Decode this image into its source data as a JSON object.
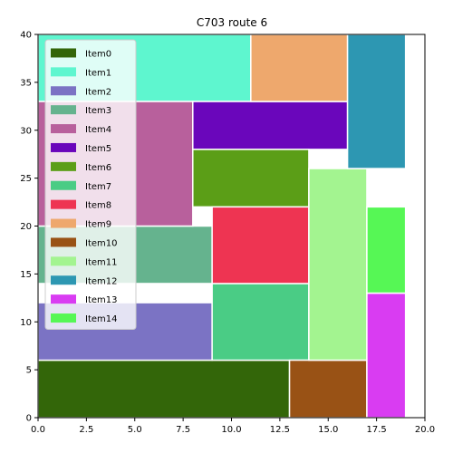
{
  "chart_data": {
    "type": "bar",
    "subtype": "rectangle-packing",
    "title": "C703 route 6",
    "xlabel": "",
    "ylabel": "",
    "xlim": [
      0,
      20
    ],
    "ylim": [
      0,
      40
    ],
    "xticks": [
      "0.0",
      "2.5",
      "5.0",
      "7.5",
      "10.0",
      "12.5",
      "15.0",
      "17.5",
      "20.0"
    ],
    "yticks": [
      "0",
      "5",
      "10",
      "15",
      "20",
      "25",
      "30",
      "35",
      "40"
    ],
    "grid": false,
    "legend_position": "upper-left",
    "series": [
      {
        "name": "Item0",
        "color": "#336609",
        "x": 0,
        "y": 0,
        "width": 13,
        "height": 6
      },
      {
        "name": "Item1",
        "color": "#5ef6cf",
        "x": 0,
        "y": 33,
        "width": 11,
        "height": 7
      },
      {
        "name": "Item2",
        "color": "#7b73c4",
        "x": 0,
        "y": 6,
        "width": 9,
        "height": 6
      },
      {
        "name": "Item3",
        "color": "#65b38e",
        "x": 0,
        "y": 14,
        "width": 9,
        "height": 6
      },
      {
        "name": "Item4",
        "color": "#b8609c",
        "x": 0,
        "y": 20,
        "width": 8,
        "height": 13
      },
      {
        "name": "Item5",
        "color": "#6a06bb",
        "x": 8,
        "y": 28,
        "width": 8,
        "height": 5
      },
      {
        "name": "Item6",
        "color": "#5b9e17",
        "x": 8,
        "y": 22,
        "width": 6,
        "height": 6
      },
      {
        "name": "Item7",
        "color": "#4acc85",
        "x": 9,
        "y": 6,
        "width": 5,
        "height": 8
      },
      {
        "name": "Item8",
        "color": "#ee3452",
        "x": 9,
        "y": 14,
        "width": 5,
        "height": 8
      },
      {
        "name": "Item9",
        "color": "#eea86d",
        "x": 11,
        "y": 33,
        "width": 5,
        "height": 7
      },
      {
        "name": "Item10",
        "color": "#995215",
        "x": 13,
        "y": 0,
        "width": 4,
        "height": 6
      },
      {
        "name": "Item11",
        "color": "#a3f490",
        "x": 14,
        "y": 6,
        "width": 3,
        "height": 20
      },
      {
        "name": "Item12",
        "color": "#2d97b2",
        "x": 16,
        "y": 26,
        "width": 3,
        "height": 14
      },
      {
        "name": "Item13",
        "color": "#d93cf2",
        "x": 17,
        "y": 0,
        "width": 2,
        "height": 13
      },
      {
        "name": "Item14",
        "color": "#56f755",
        "x": 17,
        "y": 13,
        "width": 2,
        "height": 9
      }
    ]
  }
}
